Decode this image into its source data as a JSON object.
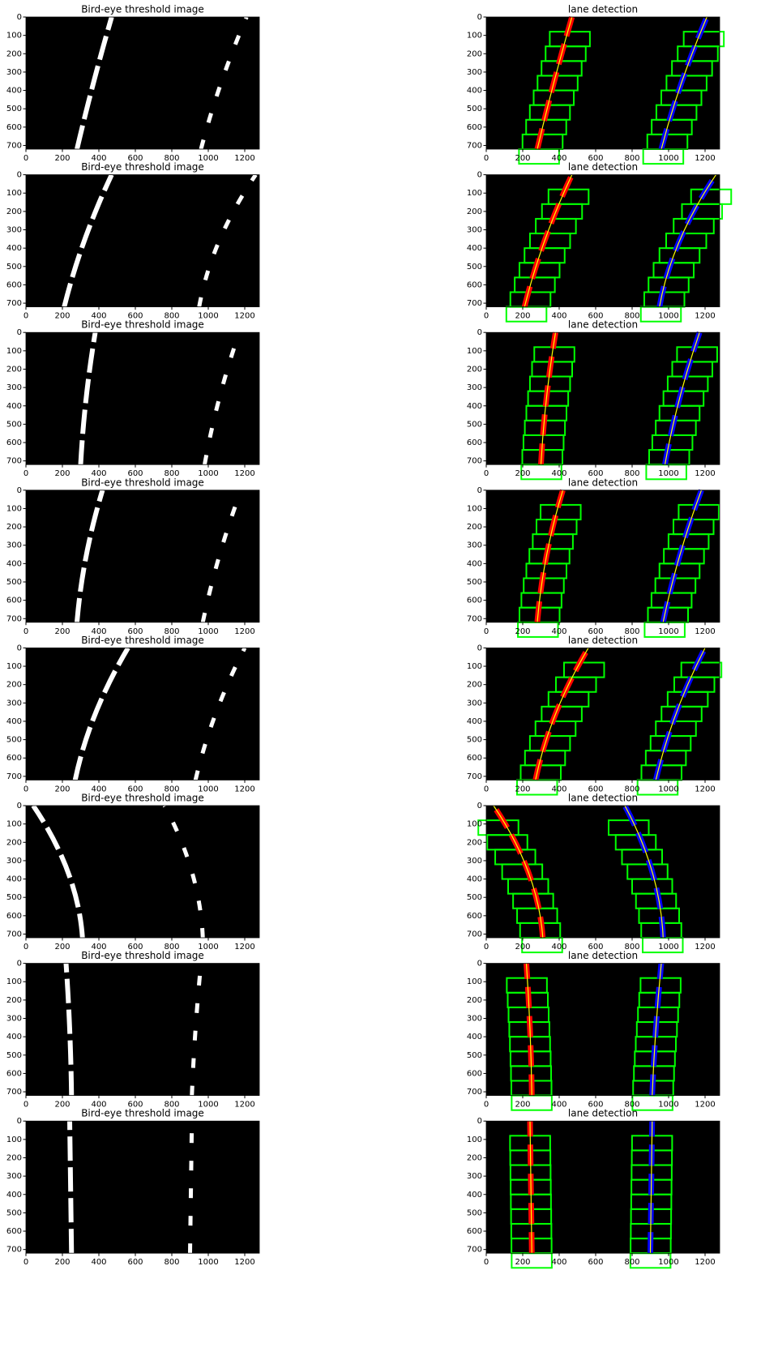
{
  "panels": [
    {
      "title": "Bird-eye threshold image"
    },
    {
      "title": "lane detection"
    },
    {
      "title": "Bird-eye threshold image"
    },
    {
      "title": "lane detection"
    },
    {
      "title": "Bird-eye threshold image"
    },
    {
      "title": "lane detection"
    },
    {
      "title": "Bird-eye threshold image"
    },
    {
      "title": "lane detection"
    },
    {
      "title": "Bird-eye threshold image"
    },
    {
      "title": "lane detection"
    },
    {
      "title": "Bird-eye threshold image"
    },
    {
      "title": "lane detection"
    },
    {
      "title": "Bird-eye threshold image"
    },
    {
      "title": "lane detection"
    },
    {
      "title": "Bird-eye threshold image"
    },
    {
      "title": "lane detection"
    }
  ],
  "xlim": [
    0,
    1280
  ],
  "ylim": [
    720,
    0
  ],
  "xticks": [
    0,
    200,
    400,
    600,
    800,
    1000,
    1200
  ],
  "yticks": [
    0,
    100,
    200,
    300,
    400,
    500,
    600,
    700
  ]
}
